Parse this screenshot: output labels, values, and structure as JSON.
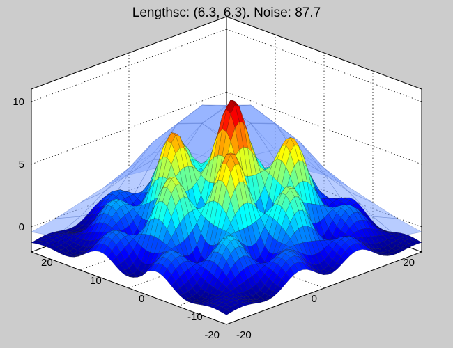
{
  "chart_data": {
    "type": "surface",
    "title": "Lengthsc: (6.3, 6.3). Noise: 87.7",
    "xlabel": "",
    "ylabel": "",
    "zlabel": "",
    "xlim": [
      -20,
      20
    ],
    "ylim": [
      -20,
      20
    ],
    "zlim": [
      -2,
      11
    ],
    "x_ticks": [
      "-20",
      "0",
      "20"
    ],
    "y_ticks": [
      "-20",
      "-10",
      "0",
      "10",
      "20"
    ],
    "z_ticks": [
      "0",
      "5",
      "10"
    ],
    "colormap": "jet",
    "view": {
      "azimuth": -37.5,
      "elevation": 30
    },
    "grid": true,
    "box": true,
    "background_color": "#cccccc",
    "overlay_surface_color": "#7ea2ff",
    "surface": {
      "description_function": "hypothetical smooth bumpy surface",
      "peak_value": 10.3,
      "base_value": -1.5,
      "radius_of_decay": 20,
      "bump_period": 12.5
    }
  }
}
